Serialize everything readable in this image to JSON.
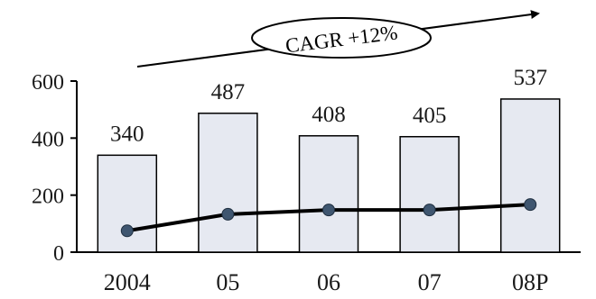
{
  "chart_data": {
    "type": "bar",
    "categories": [
      "2004",
      "05",
      "06",
      "07",
      "08P"
    ],
    "series": [
      {
        "type": "bar",
        "values": [
          340,
          487,
          408,
          405,
          537
        ]
      },
      {
        "type": "line",
        "values": [
          75,
          133,
          148,
          148,
          167
        ]
      }
    ],
    "data_labels": [
      "340",
      "487",
      "408",
      "405",
      "537"
    ],
    "y_ticks": [
      "0",
      "200",
      "400",
      "600"
    ],
    "ylim": [
      0,
      600
    ],
    "grid": false,
    "legend": "none",
    "annotation": {
      "text": "CAGR +12%"
    },
    "colors": {
      "bar_fill": "#e6e9f1",
      "bar_stroke": "#000000",
      "line": "#000000",
      "marker": "#3f5670"
    }
  }
}
